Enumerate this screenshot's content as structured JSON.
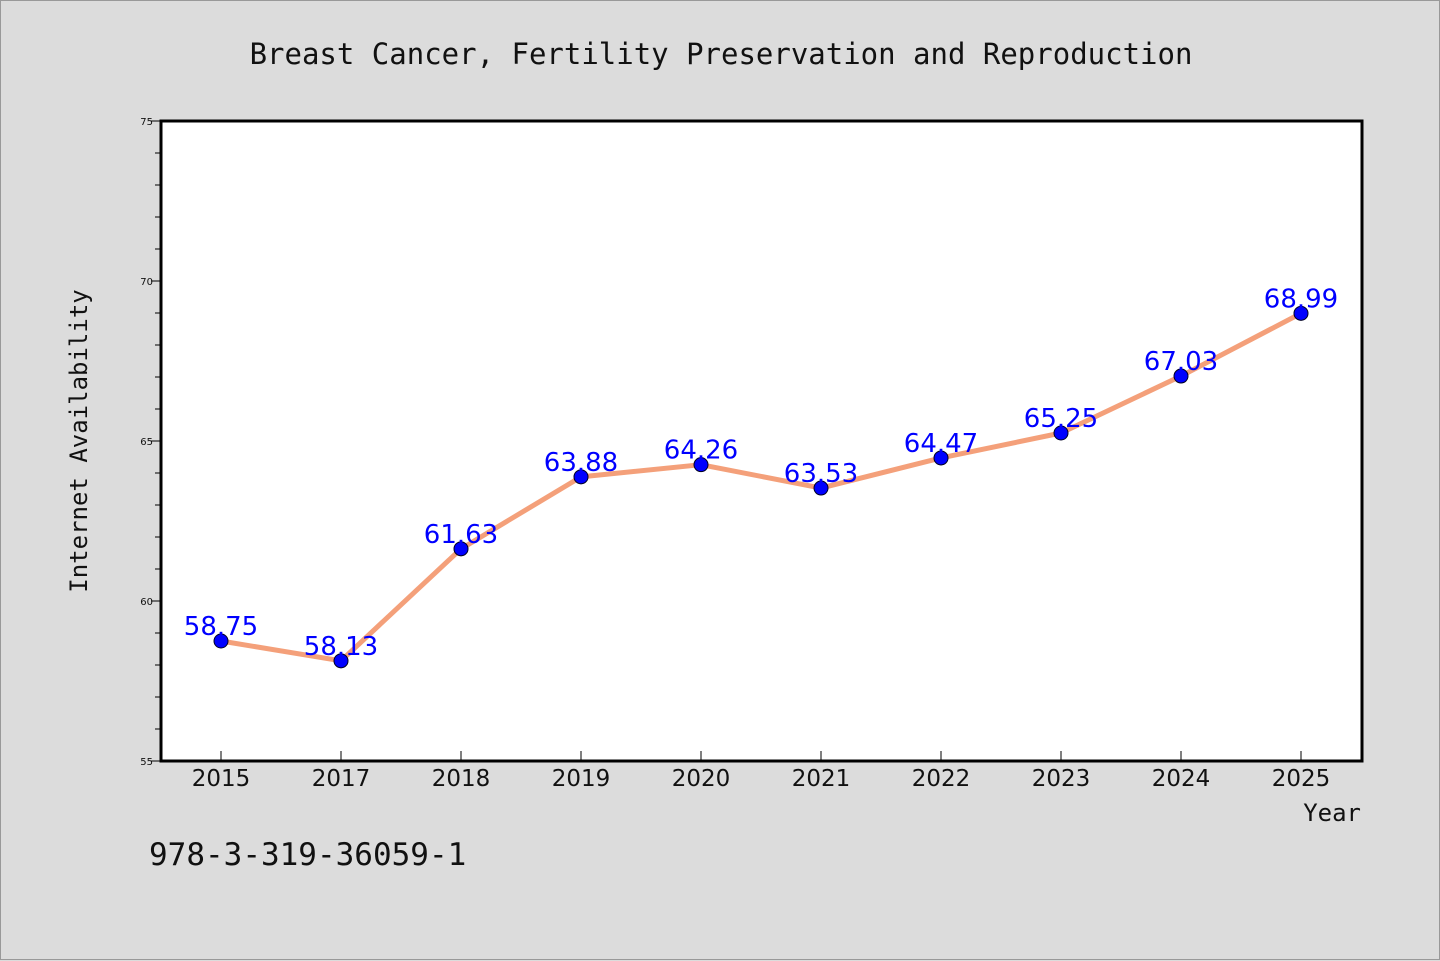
{
  "chart_data": {
    "type": "line",
    "title": "Breast Cancer, Fertility Preservation and Reproduction",
    "xlabel": "Year",
    "ylabel": "Internet Availability",
    "categories": [
      "2015",
      "2017",
      "2018",
      "2019",
      "2020",
      "2021",
      "2022",
      "2023",
      "2024",
      "2025"
    ],
    "values": [
      58.75,
      58.13,
      61.63,
      63.88,
      64.26,
      63.53,
      64.47,
      65.25,
      67.03,
      68.99
    ],
    "data_labels": [
      "58.75",
      "58.13",
      "61.63",
      "63.88",
      "64.26",
      "63.53",
      "64.47",
      "65.25",
      "67.03",
      "68.99"
    ],
    "ylim": [
      55,
      75
    ],
    "yticks": [
      55,
      60,
      65,
      70,
      75
    ],
    "ytick_labels": [
      "55",
      "60",
      "65",
      "70",
      "75"
    ],
    "grid": false,
    "line_color": "#f4a07a",
    "marker_color": "#0000ff",
    "label_color": "#0000ff"
  },
  "annotation": "978-3-319-36059-1"
}
